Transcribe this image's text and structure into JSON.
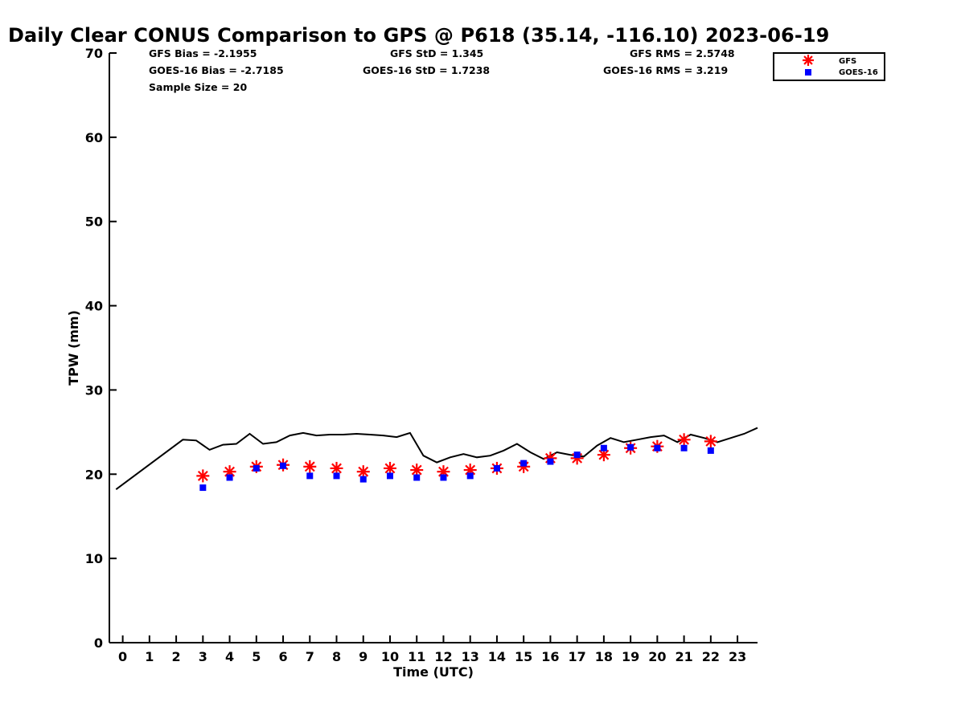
{
  "chart_data": {
    "type": "scatter",
    "title": "Daily Clear CONUS Comparison to GPS @ P618 (35.14, -116.10) 2023-06-19",
    "xlabel": "Time (UTC)",
    "ylabel": "TPW (mm)",
    "xlim": [
      -0.5,
      23.75
    ],
    "ylim": [
      0,
      70
    ],
    "x_ticks": [
      0,
      1,
      2,
      3,
      4,
      5,
      6,
      7,
      8,
      9,
      10,
      11,
      12,
      13,
      14,
      15,
      16,
      17,
      18,
      19,
      20,
      21,
      22,
      23
    ],
    "y_ticks": [
      0,
      10,
      20,
      30,
      40,
      50,
      60,
      70
    ],
    "grid": false,
    "legend_position": "top-right",
    "stats": {
      "gfs_bias": "GFS Bias = -2.1955",
      "gfs_std": "GFS StD = 1.345",
      "gfs_rms": "GFS RMS = 2.5748",
      "goes_bias": "GOES-16 Bias = -2.7185",
      "goes_std": "GOES-16 StD = 1.7238",
      "goes_rms": "GOES-16 RMS = 3.219",
      "sample_size": "Sample Size = 20"
    },
    "series": [
      {
        "type": "line",
        "color": "#000000",
        "x": [
          -0.25,
          2.25,
          2.75,
          3.25,
          3.75,
          4.25,
          4.75,
          5.25,
          5.75,
          6.25,
          6.75,
          7.25,
          7.75,
          8.25,
          8.75,
          9.25,
          9.75,
          10.25,
          10.75,
          11.25,
          11.75,
          12.25,
          12.75,
          13.25,
          13.75,
          14.25,
          14.75,
          15.25,
          15.75,
          16.25,
          16.75,
          17.25,
          17.75,
          18.25,
          18.75,
          19.25,
          19.75,
          20.25,
          20.75,
          21.25,
          21.75,
          22.25,
          22.75,
          23.25,
          23.75
        ],
        "values": [
          18.2,
          24.1,
          24.0,
          22.9,
          23.5,
          23.6,
          24.8,
          23.6,
          23.8,
          24.6,
          24.9,
          24.6,
          24.7,
          24.7,
          24.8,
          24.7,
          24.6,
          24.4,
          24.9,
          22.2,
          21.4,
          22.0,
          22.4,
          22.0,
          22.2,
          22.8,
          23.6,
          22.6,
          21.8,
          22.6,
          22.3,
          22.1,
          23.4,
          24.3,
          23.8,
          24.1,
          24.4,
          24.6,
          23.8,
          24.7,
          24.3,
          23.8,
          24.3,
          24.8,
          25.5
        ]
      },
      {
        "name": "GFS",
        "type": "scatter",
        "marker": "asterisk",
        "color": "#ff0000",
        "x": [
          3,
          4,
          5,
          6,
          7,
          8,
          9,
          10,
          11,
          12,
          13,
          14,
          15,
          16,
          17,
          18,
          19,
          20,
          21,
          22
        ],
        "values": [
          19.8,
          20.3,
          20.9,
          21.1,
          20.9,
          20.7,
          20.3,
          20.7,
          20.5,
          20.3,
          20.5,
          20.7,
          20.9,
          21.9,
          21.9,
          22.3,
          23.1,
          23.3,
          24.1,
          23.9
        ]
      },
      {
        "name": "GOES-16",
        "type": "scatter",
        "marker": "square",
        "color": "#0000ff",
        "x": [
          3,
          4,
          5,
          6,
          7,
          8,
          9,
          10,
          11,
          12,
          13,
          14,
          15,
          16,
          17,
          18,
          19,
          20,
          21,
          22
        ],
        "values": [
          18.4,
          19.6,
          20.7,
          21.0,
          19.8,
          19.8,
          19.4,
          19.8,
          19.6,
          19.6,
          19.8,
          20.7,
          21.3,
          21.5,
          22.3,
          23.1,
          23.2,
          23.1,
          23.1,
          22.8
        ]
      }
    ]
  }
}
